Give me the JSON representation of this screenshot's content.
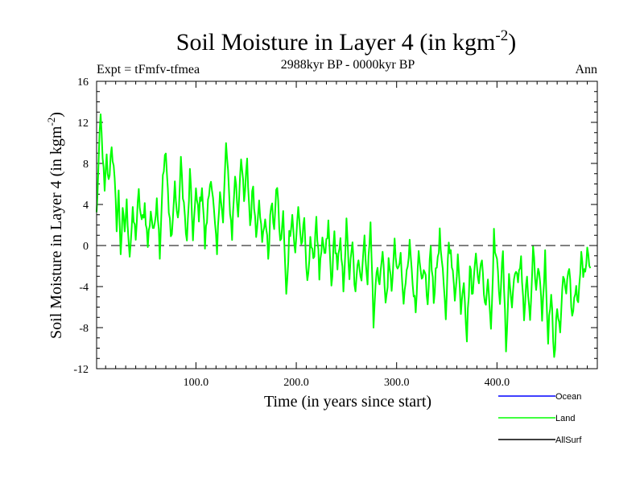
{
  "chart_data": {
    "type": "line",
    "title": "Soil Moisture in Layer 4 (in kgm",
    "title_sup": "-2",
    "title_close": ")",
    "subtitle_left": "Expt = tFmfv-tfmea",
    "subtitle_center": "2988kyr BP - 0000kyr BP",
    "subtitle_right": "Ann",
    "ylabel": "Soil Moisture in Layer 4 (in kgm",
    "ylabel_sup": "-2",
    "ylabel_close": ")",
    "xlabel": "Time (in years since start)",
    "xlim": [
      1,
      500
    ],
    "ylim": [
      -12,
      16
    ],
    "yticks": [
      16,
      12,
      8,
      4,
      0,
      -4,
      -8,
      -12
    ],
    "ytick_labels": [
      "16",
      "12",
      "8",
      "4",
      "0",
      "-4",
      "-8",
      "-12"
    ],
    "xticks": [
      100,
      200,
      300,
      400
    ],
    "xtick_labels": [
      "100.0",
      "200.0",
      "300.0",
      "400.0"
    ],
    "reference_line": {
      "y": 0,
      "style": "dashed",
      "color": "#000000"
    },
    "legend": [
      {
        "name": "Ocean",
        "color": "#0000ff"
      },
      {
        "name": "Land",
        "color": "#00ff00"
      },
      {
        "name": "AllSurf",
        "color": "#000000"
      }
    ],
    "series": [
      {
        "name": "Land",
        "color": "#00ff00",
        "anchors_x": [
          1,
          3,
          5,
          7,
          9,
          11,
          13,
          16,
          19,
          21,
          23,
          25,
          27,
          29,
          31,
          34,
          37,
          40,
          43,
          46,
          49,
          52,
          55,
          58,
          61,
          64,
          67,
          70,
          73,
          76,
          79,
          82,
          85,
          88,
          91,
          94,
          97,
          100,
          103,
          106,
          109,
          112,
          115,
          118,
          121,
          124,
          127,
          130,
          133,
          136,
          139,
          142,
          145,
          148,
          151,
          154,
          157,
          160,
          163,
          166,
          169,
          172,
          175,
          178,
          181,
          184,
          187,
          190,
          193,
          196,
          199,
          202,
          205,
          208,
          211,
          214,
          217,
          220,
          223,
          226,
          229,
          232,
          235,
          238,
          241,
          244,
          247,
          250,
          253,
          256,
          259,
          262,
          265,
          268,
          271,
          274,
          277,
          280,
          283,
          286,
          289,
          292,
          295,
          298,
          301,
          304,
          307,
          310,
          313,
          316,
          319,
          322,
          325,
          328,
          331,
          334,
          337,
          340,
          343,
          346,
          349,
          352,
          355,
          358,
          361,
          364,
          367,
          370,
          373,
          376,
          379,
          382,
          385,
          388,
          391,
          394,
          397,
          400,
          403,
          406,
          409,
          412,
          415,
          418,
          421,
          424,
          427,
          430,
          433,
          436,
          439,
          442,
          445,
          448,
          451,
          454,
          457,
          460,
          463,
          466,
          469,
          472,
          475,
          478,
          481,
          484,
          487,
          490,
          493,
          496,
          499
        ],
        "anchors_y": [
          3,
          8,
          12.5,
          9,
          5,
          8.5,
          6,
          10,
          6,
          2,
          5,
          -0.5,
          3,
          1.5,
          4,
          -0.8,
          3,
          1,
          5,
          2,
          4,
          0,
          3.5,
          1,
          5,
          -0.5,
          7,
          9,
          3,
          1,
          6,
          2,
          8,
          4,
          0,
          7,
          1,
          5,
          3,
          6,
          0,
          4,
          7,
          3,
          -1,
          6,
          2,
          10,
          5,
          1,
          7,
          3,
          9,
          4,
          8,
          2,
          6,
          1,
          5,
          0,
          3,
          -1,
          4,
          2,
          6,
          0,
          3,
          -5,
          1,
          3,
          -1,
          4,
          0,
          2,
          -4,
          1,
          -2,
          3,
          -3,
          0,
          -1,
          2,
          -4,
          1,
          -2,
          0,
          -4,
          2,
          -3,
          0,
          -5,
          -1,
          -3,
          1,
          -4,
          3,
          -8,
          -2,
          -4,
          0,
          -6,
          -2,
          -4,
          0,
          -3,
          -1,
          -6,
          -2,
          0,
          -3,
          -7,
          -1,
          -4,
          -2,
          -6,
          0,
          -5,
          -2,
          1,
          -3,
          -7,
          1,
          -2,
          -5,
          -1,
          -6,
          -3,
          -9,
          -2,
          -5,
          0,
          -4,
          -1,
          -6,
          -3,
          -8,
          1,
          -2,
          -5,
          -1,
          -10,
          -3,
          -6,
          -2,
          -4,
          -1,
          -7,
          -3,
          -8,
          0,
          -5,
          -2,
          -7,
          -1,
          -9,
          -4,
          -11.5,
          -6,
          -8,
          -3,
          -5,
          -2,
          -7,
          -4,
          -6,
          -1,
          -3,
          0,
          -2
        ]
      }
    ]
  }
}
